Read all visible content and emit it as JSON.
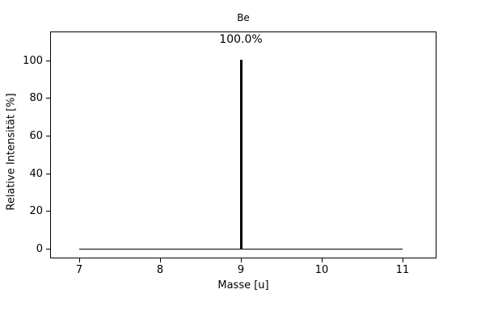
{
  "chart_data": {
    "type": "stem",
    "title": "Be",
    "xlabel": "Masse [u]",
    "ylabel": "Relative Intensität [%]",
    "x": [
      9
    ],
    "series": [
      {
        "name": "Relative Intensität",
        "values": [
          100
        ]
      }
    ],
    "point_labels": [
      "100.0%"
    ],
    "baseline": {
      "y": 0,
      "x_start": 7,
      "x_end": 11
    },
    "xticks": [
      7,
      8,
      9,
      10,
      11
    ],
    "yticks": [
      0,
      20,
      40,
      60,
      80,
      100
    ],
    "xlim": [
      6.64,
      11.42
    ],
    "ylim": [
      -5,
      115.6
    ],
    "grid": false,
    "legend": null,
    "line_color": "#000000",
    "text_color": "#000000",
    "background_color": "#ffffff"
  }
}
